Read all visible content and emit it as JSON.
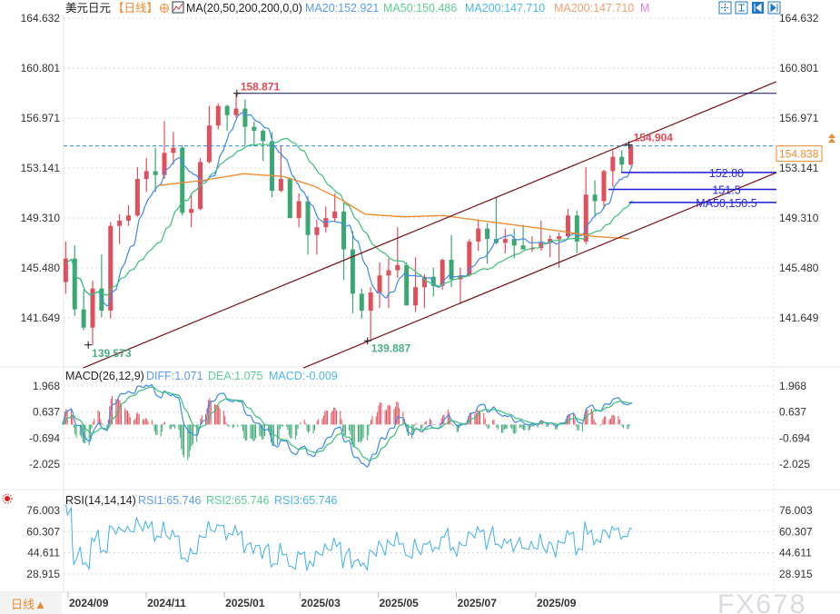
{
  "header": {
    "symbol": "美元日元",
    "period": "【日线】",
    "ma_params": "MA(20,50,200,200,0,0)",
    "ma20": "MA20:152.921",
    "ma50": "MA50:150.486",
    "ma200a": "MA200:147.710",
    "ma200b": "MA200:147.710",
    "m": "M",
    "icons": [
      "crosshair-icon",
      "fit-icon",
      "scroll-left-icon",
      "scroll-right-icon"
    ]
  },
  "macd_header": {
    "params": "MACD(26,12,9)",
    "diff": "DIFF:1.071",
    "dea": "DEA:1.075",
    "macd": "MACD:-0.009"
  },
  "rsi_header": {
    "params": "RSI(14,14,14)",
    "rsi1": "RSI1:65.746",
    "rsi2": "RSI2:65.746",
    "rsi3": "RSI3:65.746"
  },
  "footer": {
    "period_button": "日线▲",
    "watermark": "FX678"
  },
  "colors": {
    "up": "#e0505c",
    "down": "#3aa872",
    "ma20": "#3d8be8",
    "ma50": "#3cbf7a",
    "ma200": "#f08a2c",
    "rsi": "#3fb0e8",
    "channel": "#7a0f14",
    "level": "#1a1ad8",
    "current": "#f08a2c"
  },
  "chart_data": [
    {
      "type": "candlestick",
      "title": "美元日元",
      "ylim": [
        139.0,
        164.632
      ],
      "yticks": [
        "164.632",
        "160.801",
        "156.971",
        "153.141",
        "149.310",
        "145.480",
        "141.649"
      ],
      "xticks": [
        "2024/09",
        "2024/11",
        "2025/01",
        "2025/03",
        "2025/05",
        "2025/07",
        "2025/09"
      ],
      "xtick_dates": [
        "2024-09-01",
        "2024-11-01",
        "2025-01-01",
        "2025-03-01",
        "2025-05-01",
        "2025-07-01",
        "2025-09-01"
      ],
      "candles_weekly_ohlc": [
        [
          "2024-08-26",
          144.4,
          147.5,
          143.5,
          146.2
        ],
        [
          "2024-09-02",
          146.2,
          147.2,
          141.8,
          142.3
        ],
        [
          "2024-09-09",
          142.3,
          143.8,
          140.7,
          140.9
        ],
        [
          "2024-09-16",
          140.9,
          144.5,
          139.573,
          143.9
        ],
        [
          "2024-09-23",
          143.9,
          146.5,
          141.7,
          142.2
        ],
        [
          "2024-09-30",
          142.2,
          149.0,
          141.6,
          148.7
        ],
        [
          "2024-10-07",
          148.7,
          149.6,
          147.3,
          149.1
        ],
        [
          "2024-10-14",
          149.1,
          150.3,
          148.7,
          149.5
        ],
        [
          "2024-10-21",
          149.5,
          153.2,
          149.4,
          152.3
        ],
        [
          "2024-10-28",
          152.3,
          153.9,
          151.3,
          152.9
        ],
        [
          "2024-11-04",
          152.9,
          154.7,
          151.3,
          152.6
        ],
        [
          "2024-11-11",
          152.6,
          156.75,
          152.3,
          154.3
        ],
        [
          "2024-11-18",
          154.3,
          155.9,
          153.4,
          154.7
        ],
        [
          "2024-11-25",
          154.7,
          154.9,
          149.5,
          149.7
        ],
        [
          "2024-12-02",
          149.7,
          151.2,
          148.6,
          150.0
        ],
        [
          "2024-12-09",
          150.0,
          153.9,
          149.9,
          153.6
        ],
        [
          "2024-12-16",
          153.6,
          157.9,
          153.5,
          156.4
        ],
        [
          "2024-12-23",
          156.4,
          158.1,
          156.1,
          157.9
        ],
        [
          "2024-12-30",
          157.9,
          158.0,
          156.0,
          157.2
        ],
        [
          "2025-01-06",
          157.2,
          158.871,
          157.0,
          157.7
        ],
        [
          "2025-01-13",
          157.7,
          158.4,
          154.9,
          156.3
        ],
        [
          "2025-01-20",
          156.3,
          156.7,
          154.8,
          156.0
        ],
        [
          "2025-01-27",
          156.0,
          156.1,
          153.7,
          155.2
        ],
        [
          "2025-02-03",
          155.2,
          155.9,
          150.9,
          151.4
        ],
        [
          "2025-02-10",
          151.4,
          154.8,
          151.3,
          152.3
        ],
        [
          "2025-02-17",
          152.3,
          152.4,
          149.3,
          149.3
        ],
        [
          "2025-02-24",
          149.3,
          151.2,
          148.6,
          150.6
        ],
        [
          "2025-03-03",
          150.6,
          151.0,
          146.5,
          148.0
        ],
        [
          "2025-03-10",
          148.0,
          149.2,
          146.5,
          148.6
        ],
        [
          "2025-03-17",
          148.6,
          150.2,
          148.2,
          149.3
        ],
        [
          "2025-03-24",
          149.3,
          151.2,
          149.0,
          149.8
        ],
        [
          "2025-03-31",
          149.8,
          150.5,
          144.55,
          146.9
        ],
        [
          "2025-04-07",
          146.9,
          148.3,
          142.0,
          143.5
        ],
        [
          "2025-04-14",
          143.5,
          143.9,
          141.6,
          142.2
        ],
        [
          "2025-04-21",
          142.2,
          144.0,
          139.887,
          143.6
        ],
        [
          "2025-04-28",
          143.6,
          145.9,
          142.4,
          144.9
        ],
        [
          "2025-05-05",
          144.9,
          146.2,
          142.4,
          145.3
        ],
        [
          "2025-05-12",
          145.3,
          148.6,
          144.7,
          145.7
        ],
        [
          "2025-05-19",
          145.7,
          145.9,
          142.8,
          142.6
        ],
        [
          "2025-05-26",
          142.6,
          146.3,
          142.1,
          144.0
        ],
        [
          "2025-06-02",
          144.0,
          145.0,
          142.4,
          144.8
        ],
        [
          "2025-06-09",
          144.8,
          145.5,
          143.3,
          144.1
        ],
        [
          "2025-06-16",
          144.1,
          146.2,
          143.8,
          146.1
        ],
        [
          "2025-06-23",
          146.1,
          148.0,
          144.0,
          144.6
        ],
        [
          "2025-06-30",
          144.6,
          145.5,
          142.7,
          144.9
        ],
        [
          "2025-07-07",
          144.9,
          147.7,
          144.8,
          147.5
        ],
        [
          "2025-07-14",
          147.5,
          149.2,
          146.8,
          148.5
        ],
        [
          "2025-07-21",
          148.5,
          148.9,
          145.8,
          147.7
        ],
        [
          "2025-07-28",
          147.7,
          150.9,
          147.3,
          147.4
        ],
        [
          "2025-08-04",
          147.4,
          148.5,
          146.6,
          147.7
        ],
        [
          "2025-08-11",
          147.7,
          148.5,
          146.2,
          147.2
        ],
        [
          "2025-08-18",
          147.2,
          148.8,
          146.9,
          146.9
        ],
        [
          "2025-08-25",
          146.9,
          147.9,
          146.7,
          147.0
        ],
        [
          "2025-09-01",
          147.0,
          149.1,
          146.8,
          147.4
        ],
        [
          "2025-09-08",
          147.4,
          148.0,
          146.3,
          147.7
        ],
        [
          "2025-09-15",
          147.7,
          148.2,
          145.5,
          147.9
        ],
        [
          "2025-09-22",
          147.9,
          150.0,
          147.8,
          149.5
        ],
        [
          "2025-09-29",
          149.5,
          149.9,
          146.6,
          147.5
        ],
        [
          "2025-10-06",
          147.5,
          153.2,
          147.3,
          151.1
        ],
        [
          "2025-10-13",
          151.1,
          152.2,
          149.4,
          150.6
        ],
        [
          "2025-10-20",
          150.6,
          153.0,
          150.0,
          152.9
        ],
        [
          "2025-10-27",
          152.9,
          154.5,
          151.7,
          154.0
        ],
        [
          "2025-11-03",
          154.0,
          154.5,
          152.8,
          153.4
        ],
        [
          "2025-11-10",
          153.4,
          154.904,
          153.3,
          154.838
        ]
      ],
      "ma200_points": [
        [
          "2024-11-10",
          151.8
        ],
        [
          "2024-12-15",
          152.2
        ],
        [
          "2025-01-15",
          152.7
        ],
        [
          "2025-02-15",
          152.5
        ],
        [
          "2025-03-10",
          151.8
        ],
        [
          "2025-03-31",
          150.8
        ],
        [
          "2025-04-20",
          149.6
        ],
        [
          "2025-05-20",
          149.4
        ],
        [
          "2025-06-20",
          149.5
        ],
        [
          "2025-07-20",
          149.1
        ],
        [
          "2025-08-20",
          148.7
        ],
        [
          "2025-09-20",
          148.3
        ],
        [
          "2025-10-15",
          147.9
        ],
        [
          "2025-11-12",
          147.71
        ]
      ],
      "annotations": {
        "high_label": "158.871",
        "high_value": 158.871,
        "high_date": "2025-01-10",
        "low1_label": "139.573",
        "low1_value": 139.573,
        "low1_date": "2024-09-16",
        "low2_label": "139.887",
        "low2_value": 139.887,
        "low2_date": "2025-04-22",
        "last_high_label": "154.904",
        "last_high_value": 154.904,
        "last_date": "2025-11-12",
        "current_price_label": "154.838",
        "current_price": 154.838,
        "levels": [
          {
            "label": "152.80",
            "value": 152.8,
            "from": "2025-11-06"
          },
          {
            "label": "151.5",
            "value": 151.5,
            "from": "2025-10-27"
          },
          {
            "label": "MA50,150.5",
            "value": 150.5,
            "from": "2025-11-12"
          }
        ],
        "channel_upper": [
          [
            "2024-09-12",
            137.81
          ],
          [
            "2026-03-07",
            159.76
          ]
        ],
        "channel_lower": [
          [
            "2025-03-03",
            137.81
          ],
          [
            "2026-03-07",
            152.79
          ]
        ]
      }
    },
    {
      "type": "line",
      "title": "MACD(26,12,9)",
      "ylim": [
        -2.8,
        2.4
      ],
      "yticks": [
        "1.968",
        "0.637",
        "-0.694",
        "-2.025"
      ]
    },
    {
      "type": "line",
      "title": "RSI(14,14,14)",
      "ylim": [
        18,
        84
      ],
      "yticks": [
        "76.003",
        "60.307",
        "44.611",
        "28.915"
      ]
    }
  ]
}
